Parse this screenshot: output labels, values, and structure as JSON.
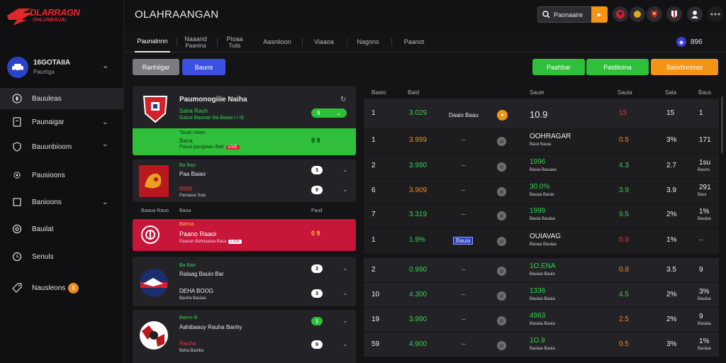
{
  "brand": {
    "line1": "DLARRAGN",
    "line2": "OHLUNBAUAI",
    "accent": "#e3262c"
  },
  "user": {
    "name": "16GOTAIIA",
    "sub": "Paurtiga"
  },
  "nav": [
    {
      "label": "Bauuleas",
      "icon": "compass-icon"
    },
    {
      "label": "Paunaigar",
      "icon": "doc-icon"
    },
    {
      "label": "Bauunbioom",
      "icon": "shield-icon"
    },
    {
      "label": "Pausioons",
      "icon": "gear-icon"
    },
    {
      "label": "Banioons",
      "icon": "square-icon"
    },
    {
      "label": "Bauilat",
      "icon": "settings-icon"
    },
    {
      "label": "Senuls",
      "icon": "clock-icon"
    },
    {
      "label": "Nausleons",
      "icon": "tag-icon",
      "badge": "8"
    }
  ],
  "header": {
    "title": "OLAHRAANGAN",
    "search_placeholder": "Paonaaire",
    "balance": "896"
  },
  "tabs": [
    {
      "l1": "Paunalnnn",
      "l2": ""
    },
    {
      "l1": "Naaarid",
      "l2": "Paanina"
    },
    {
      "l1": "Pioaa",
      "l2": "Tuits"
    },
    {
      "l1": "Aasniloon",
      "l2": ""
    },
    {
      "l1": "Viaaoa",
      "l2": ""
    },
    {
      "l1": "Nagons",
      "l2": ""
    },
    {
      "l1": "Paanot",
      "l2": ""
    }
  ],
  "filters": {
    "left1": "Ranhiigar",
    "left2": "Bauns",
    "right1": "Paahbar",
    "right2": "Paiditoina",
    "right3": "Baisdinnioas"
  },
  "cards": {
    "c1": {
      "title": "Paumonogiiie Naiha",
      "sub1": "Saha Rauh",
      "sub2": "Gaiuo Bauoan Ba Baiaa I I I9",
      "toggle": "9",
      "hl1": "Tauan Maer",
      "hl2": "Bana",
      "hl3": "Paiua paugiaau Bati",
      "hl_val": "9 9"
    },
    "c2": {
      "a1": "Ba Bao",
      "a2": "Paa Baiao",
      "a3": "9999",
      "a4": "Panaasa Suiu",
      "t1": "3",
      "t2": "9"
    },
    "c3": {
      "h1": "Baaua Rauo",
      "h2": "Baua",
      "h3": "Pauil",
      "n1": "Banna",
      "n2": "Paano Raaoi",
      "n3": "Paanan Bahdaaiaa Baca",
      "val": "0 9"
    },
    "c4": {
      "a1": "Ba Bao",
      "a2": "Ralaag Bauio Bar",
      "a3": "DEHA BOOG",
      "a4": "Bauha Bauiaa",
      "t1": "3",
      "t2": "3"
    },
    "c5": {
      "a1": "Banrn B",
      "a2": "Aahibaauy Rauha Banhy",
      "a3": "Rauha",
      "a4": "Baha Baulka",
      "t1": "1",
      "t2": "9"
    }
  },
  "table": {
    "headers": [
      "Baaio",
      "Baid",
      "Sauie",
      "Sauia",
      "Saia",
      "Baus",
      "Baaio"
    ],
    "rows": [
      {
        "a": "1",
        "b": "3.029",
        "bc": "g",
        "c": "Daaio Baau",
        "d": "10.9",
        "e": "15",
        "ec": "r",
        "f": "15",
        "g": "1",
        "d2": "",
        "big": true
      },
      {
        "a": "1",
        "b": "3.999",
        "bc": "o",
        "c": "–",
        "d": "OOHRAGAR",
        "d2": "Bauii Bauia",
        "e": "0.5",
        "ec": "o",
        "f": "3%",
        "g": "171"
      },
      {
        "a": "2",
        "b": "3.990",
        "bc": "g",
        "c": "–",
        "d": "1996",
        "d2": "Bauia Bauaaa",
        "e": "4.3",
        "ec": "g",
        "f": "2.7",
        "g": "1su",
        "g2": "Bauns"
      },
      {
        "a": "6",
        "b": "3.909",
        "bc": "o",
        "c": "–",
        "d": "30.0%",
        "d2": "Bauaa Bauia",
        "e": "3.9",
        "ec": "g",
        "f": "3.9",
        "g": "291",
        "g2": "Baui"
      },
      {
        "a": "7",
        "b": "3.319",
        "bc": "g",
        "c": "–",
        "d": "1999",
        "d2": "Bauia Bauiaa",
        "e": "9.5",
        "ec": "g",
        "f": "2%",
        "g": "1%",
        "g2": "Bauiaa"
      },
      {
        "a": "1",
        "b": "1.9%",
        "bc": "g",
        "c": "Bauia",
        "d": "OUIAVAG",
        "d2": "Bauaa Bauiaa",
        "e": "0.9",
        "ec": "r",
        "f": "1%",
        "g": "–",
        "g2": ""
      },
      {
        "a": "2",
        "b": "0.990",
        "bc": "g",
        "c": "–",
        "d": "1O.ENA",
        "d2": "Bauiaa Bauio",
        "e": "0.9",
        "ec": "o",
        "f": "3.5",
        "g": "9",
        "g2": ""
      },
      {
        "a": "10",
        "b": "4.300",
        "bc": "g",
        "c": "–",
        "d": "1336",
        "d2": "Bauiaa Bauia",
        "e": "4.5",
        "ec": "g",
        "f": "2%",
        "g": "3%",
        "g2": "Bauiaa"
      },
      {
        "a": "19",
        "b": "3.990",
        "bc": "g",
        "c": "–",
        "d": "4963",
        "d2": "Bauiaa Bauia",
        "e": "2.5",
        "ec": "o",
        "f": "2%",
        "g": "9",
        "g2": "Bauiaa"
      },
      {
        "a": "59",
        "b": "4.900",
        "bc": "g",
        "c": "–",
        "d": "1O.9",
        "d2": "Bauiaa Bauia",
        "e": "0.5",
        "ec": "o",
        "f": "3%",
        "g": "1%",
        "g2": "Bauiaa"
      }
    ]
  },
  "colors": {
    "green": "#2fbf3b",
    "red": "#c8153a",
    "orange": "#f29416",
    "blue": "#3b50e0"
  }
}
